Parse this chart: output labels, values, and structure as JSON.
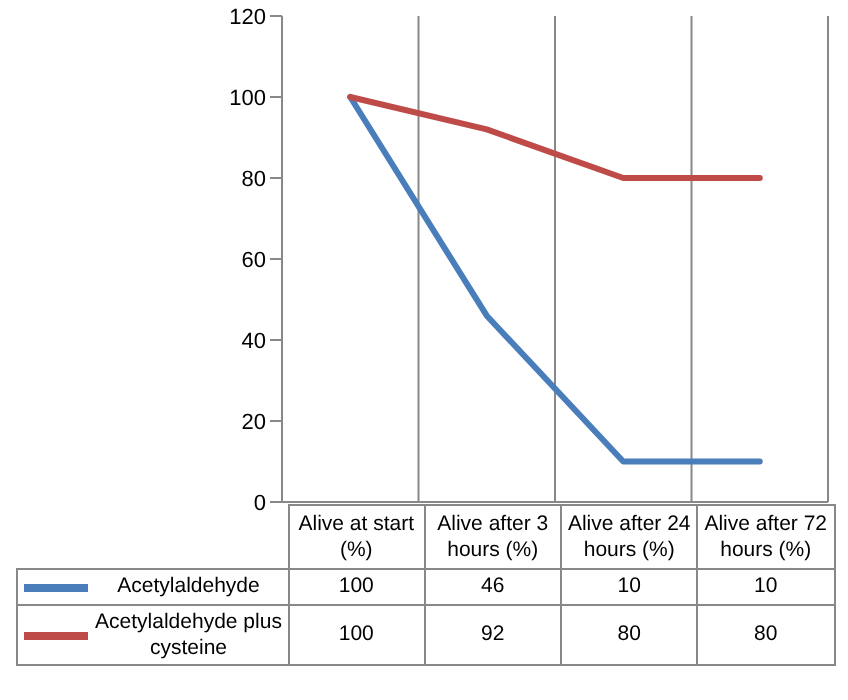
{
  "chart_data": {
    "type": "line",
    "categories": [
      "Alive at start (%)",
      "Alive after 3 hours (%)",
      "Alive after 24 hours (%)",
      "Alive after 72 hours (%)"
    ],
    "series": [
      {
        "name": "Acetylaldehyde",
        "color": "#4a7ebb",
        "values": [
          100,
          46,
          10,
          10
        ]
      },
      {
        "name": "Acetylaldehyde plus cysteine",
        "color": "#be4b48",
        "values": [
          100,
          92,
          80,
          80
        ]
      }
    ],
    "ylim": [
      0,
      120
    ],
    "yticks": [
      0,
      20,
      40,
      60,
      80,
      100,
      120
    ],
    "grid": "x",
    "legend": "bottom",
    "marker": "none",
    "line_style": "solid",
    "data_labels": true
  }
}
